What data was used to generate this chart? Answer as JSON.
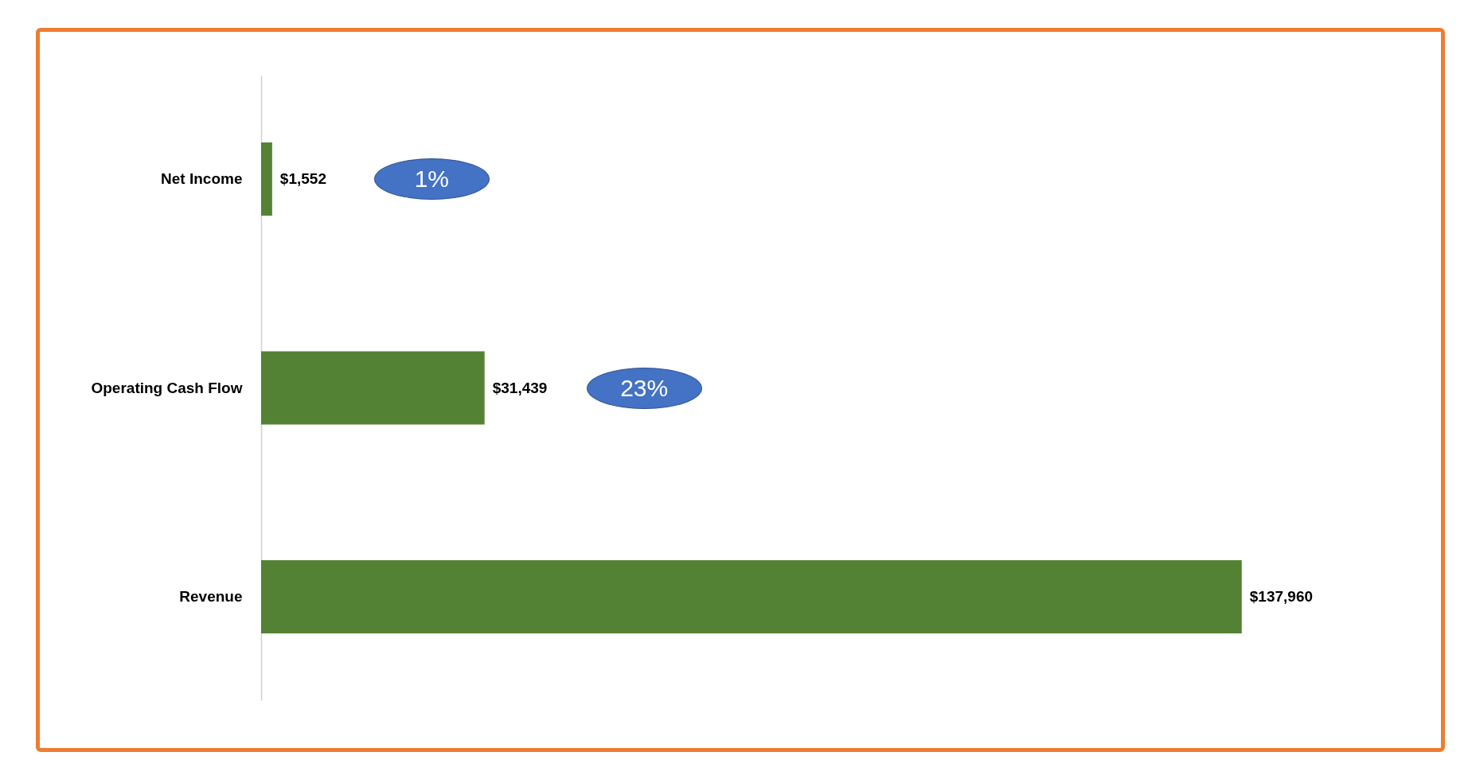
{
  "chart_data": {
    "type": "bar",
    "orientation": "horizontal",
    "categories": [
      "Net Income",
      "Operating Cash Flow",
      "Revenue"
    ],
    "values": [
      1552,
      31439,
      137960
    ],
    "color": "#548235",
    "value_labels": [
      "$1,552",
      "$31,439",
      "$137,960"
    ],
    "annotations": [
      "1%",
      "23%"
    ],
    "tick_labels": "y"
  }
}
